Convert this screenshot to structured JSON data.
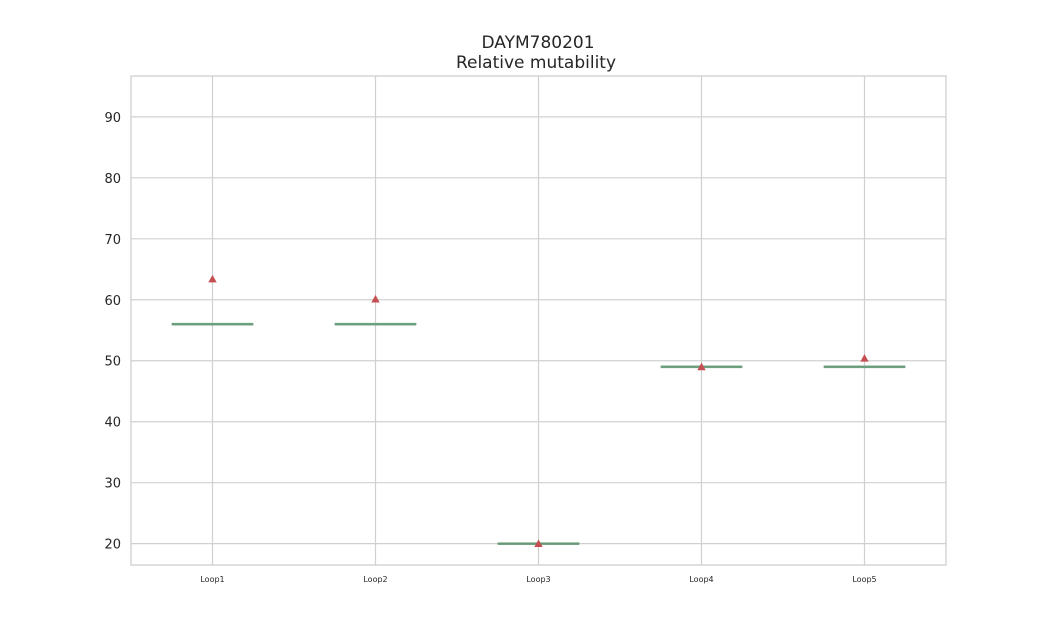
{
  "chart_data": {
    "type": "box",
    "title": "DAYM780201",
    "subtitle": "Relative mutability",
    "xlabel": "",
    "ylabel": "",
    "ylim": [
      16.5,
      96.7
    ],
    "yticks": [
      20,
      30,
      40,
      50,
      60,
      70,
      80,
      90
    ],
    "grid": true,
    "categories": [
      "Loop1",
      "Loop2",
      "Loop3",
      "Loop4",
      "Loop5"
    ],
    "series": [
      {
        "median": [
          56,
          56,
          20,
          49,
          49
        ],
        "mean": [
          63.4,
          60.1,
          20.0,
          49.0,
          50.4
        ]
      }
    ],
    "colors": {
      "median_line": "#6aa17a",
      "box": "#2f4b5f",
      "mean_marker": "#c44e52",
      "grid": "#d0d0d0",
      "frame": "#cccccc"
    }
  }
}
